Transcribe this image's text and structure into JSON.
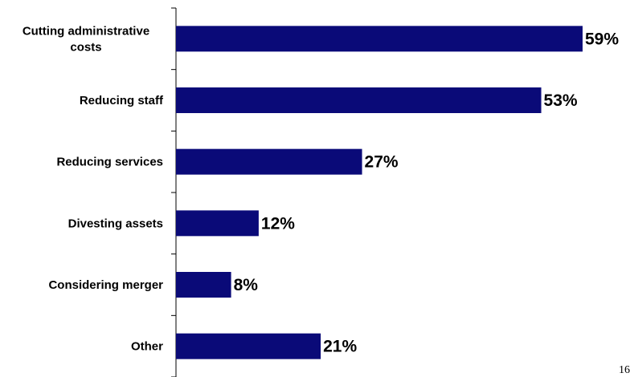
{
  "chart_data": {
    "type": "bar",
    "orientation": "horizontal",
    "categories": [
      [
        "Cutting administrative",
        "costs"
      ],
      [
        "Reducing staff"
      ],
      [
        "Reducing services"
      ],
      [
        "Divesting assets"
      ],
      [
        "Considering merger"
      ],
      [
        "Other"
      ]
    ],
    "values": [
      59,
      53,
      27,
      12,
      8,
      21
    ],
    "value_labels": [
      "59%",
      "53%",
      "27%",
      "12%",
      "8%",
      "21%"
    ],
    "xlim": [
      0,
      65
    ],
    "bar_color": "#0a0a78",
    "grid": false,
    "legend": "none"
  },
  "page_number": "16"
}
